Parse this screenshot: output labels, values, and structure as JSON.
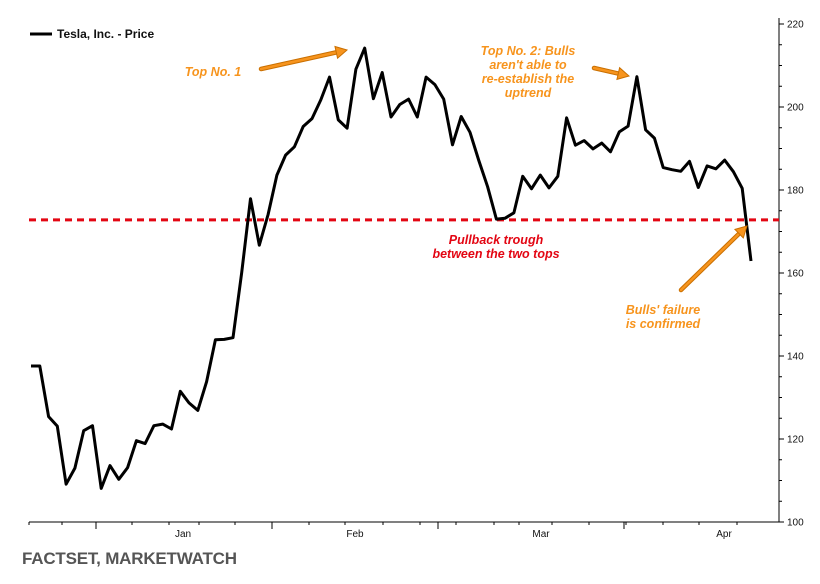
{
  "chart_data": {
    "type": "line",
    "legend": "Tesla, Inc. - Price",
    "legend_position": "top-left",
    "x_tick_labels": [
      "Jan",
      "Feb",
      "Mar",
      "Apr"
    ],
    "y_ticks": [
      100,
      120,
      140,
      160,
      180,
      200,
      220
    ],
    "ylim": [
      100,
      220
    ],
    "grid": false,
    "y_axis_side": "right",
    "series": [
      {
        "name": "Tesla, Inc. - Price",
        "color": "#000000",
        "values": [
          137.6,
          137.6,
          125.4,
          123.1,
          109.1,
          113.0,
          122.0,
          123.2,
          108.1,
          113.6,
          110.3,
          113.1,
          119.6,
          118.9,
          123.2,
          123.6,
          122.4,
          131.5,
          128.7,
          126.9,
          133.8,
          143.9,
          144.0,
          144.4,
          160.1,
          177.9,
          166.7,
          174.1,
          183.6,
          188.4,
          190.4,
          195.3,
          197.2,
          201.7,
          207.2,
          196.9,
          194.9,
          209.1,
          214.2,
          202.0,
          208.3,
          197.6,
          200.6,
          201.9,
          197.6,
          207.2,
          205.4,
          201.9,
          190.9,
          197.7,
          193.9,
          187.1,
          180.8,
          173.0,
          173.2,
          174.5,
          183.3,
          180.3,
          183.6,
          180.5,
          183.3,
          197.4,
          190.8,
          191.9,
          189.9,
          191.3,
          189.2,
          194.0,
          195.4,
          207.3,
          194.5,
          192.5,
          185.4,
          184.9,
          184.5,
          186.9,
          180.6,
          185.8,
          185.1,
          187.2,
          184.4,
          180.4,
          162.9
        ]
      }
    ],
    "reference_line": {
      "value": 172.8,
      "color": "#e30613",
      "style": "dashed"
    },
    "annotations": [
      {
        "lines": [
          "Top No. 1"
        ],
        "color": "#f7941d"
      },
      {
        "lines": [
          "Top No. 2: Bulls",
          "aren't able to",
          "re-establish the",
          "uptrend"
        ],
        "color": "#f7941d"
      },
      {
        "lines": [
          "Pullback trough",
          "between the two tops"
        ],
        "color": "#e30613"
      },
      {
        "lines": [
          "Bulls' failure",
          "is confirmed"
        ],
        "color": "#f7941d"
      }
    ]
  },
  "source": "FACTSET, MARKETWATCH"
}
